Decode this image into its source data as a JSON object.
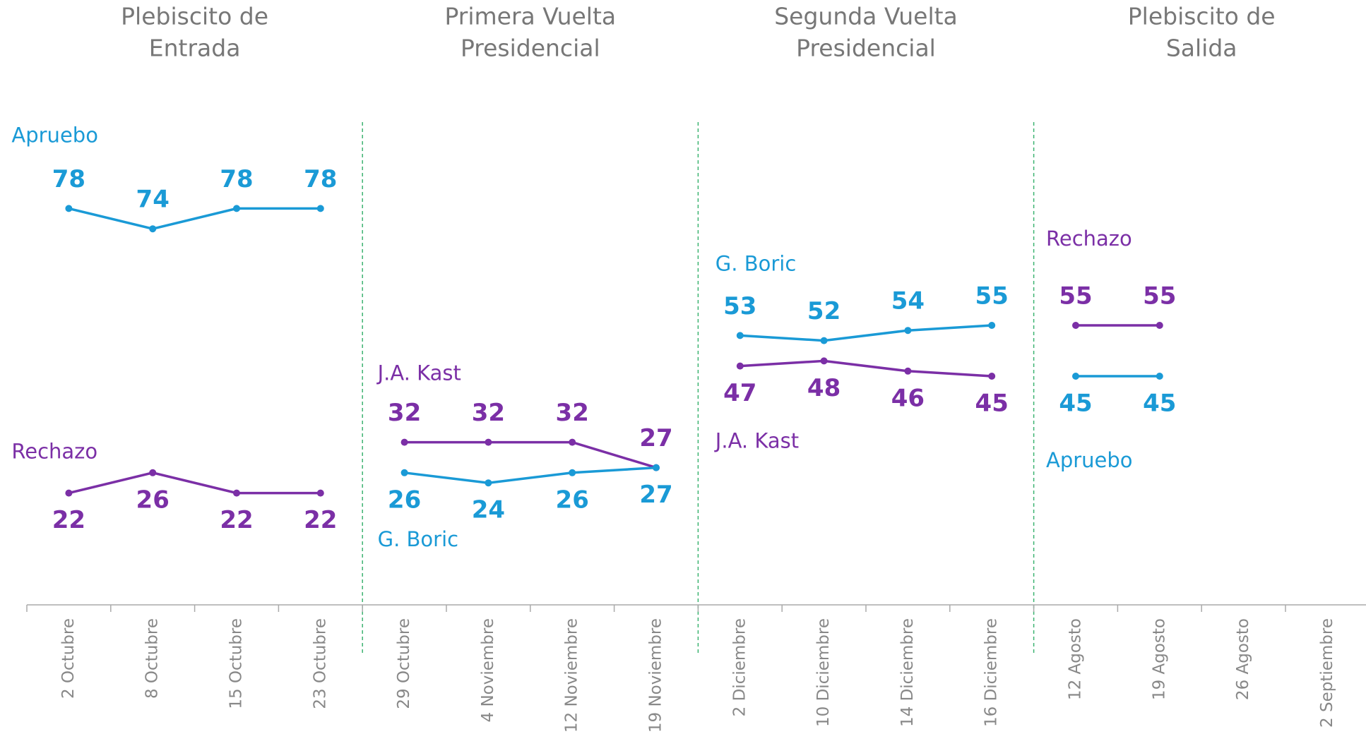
{
  "chart_data": {
    "type": "line",
    "panels": [
      [
        "Plebiscito de",
        "Entrada"
      ],
      [
        "Primera Vuelta",
        "Presidencial"
      ],
      [
        "Segunda Vuelta",
        "Presidencial"
      ],
      [
        "Plebiscito de",
        "Salida"
      ]
    ],
    "categories": [
      "2 Octubre",
      "8 Octubre",
      "15 Octubre",
      "23 Octubre",
      "29 Octubre",
      "4 Noviembre",
      "12 Noviembre",
      "19 Noviembre",
      "2 Diciembre",
      "10 Diciembre",
      "14 Diciembre",
      "16 Diciembre",
      "12 Agosto",
      "19 Agosto",
      "26 Agosto",
      "2 Septiembre"
    ],
    "ylim": [
      0,
      100
    ],
    "series": [
      {
        "name": "Apruebo",
        "color": "#1a9ad6",
        "label_position": "above",
        "values": [
          78,
          74,
          78,
          78,
          null,
          null,
          null,
          null,
          null,
          null,
          null,
          null,
          null,
          null,
          null,
          null
        ]
      },
      {
        "name": "Rechazo",
        "color": "#7b2fa6",
        "label_position": "below",
        "values": [
          22,
          26,
          22,
          22,
          null,
          null,
          null,
          null,
          null,
          null,
          null,
          null,
          null,
          null,
          null,
          null
        ]
      },
      {
        "name": "J.A. Kast",
        "color": "#7b2fa6",
        "label_position": "above",
        "values": [
          null,
          null,
          null,
          null,
          32,
          32,
          32,
          27,
          null,
          null,
          null,
          null,
          null,
          null,
          null,
          null
        ]
      },
      {
        "name": "G. Boric",
        "color": "#1a9ad6",
        "label_position": "below",
        "values": [
          null,
          null,
          null,
          null,
          26,
          24,
          26,
          27,
          null,
          null,
          null,
          null,
          null,
          null,
          null,
          null
        ]
      },
      {
        "name": "G. Boric",
        "color": "#1a9ad6",
        "label_position": "above",
        "values": [
          null,
          null,
          null,
          null,
          null,
          null,
          null,
          null,
          53,
          52,
          54,
          55,
          null,
          null,
          null,
          null
        ]
      },
      {
        "name": "J.A. Kast",
        "color": "#7b2fa6",
        "label_position": "below",
        "values": [
          null,
          null,
          null,
          null,
          null,
          null,
          null,
          null,
          47,
          48,
          46,
          45,
          null,
          null,
          null,
          null
        ]
      },
      {
        "name": "Rechazo",
        "color": "#7b2fa6",
        "label_position": "above",
        "values": [
          null,
          null,
          null,
          null,
          null,
          null,
          null,
          null,
          null,
          null,
          null,
          null,
          55,
          55,
          null,
          null
        ]
      },
      {
        "name": "Apruebo",
        "color": "#1a9ad6",
        "label_position": "below",
        "values": [
          null,
          null,
          null,
          null,
          null,
          null,
          null,
          null,
          null,
          null,
          null,
          null,
          45,
          45,
          null,
          null
        ]
      }
    ]
  }
}
